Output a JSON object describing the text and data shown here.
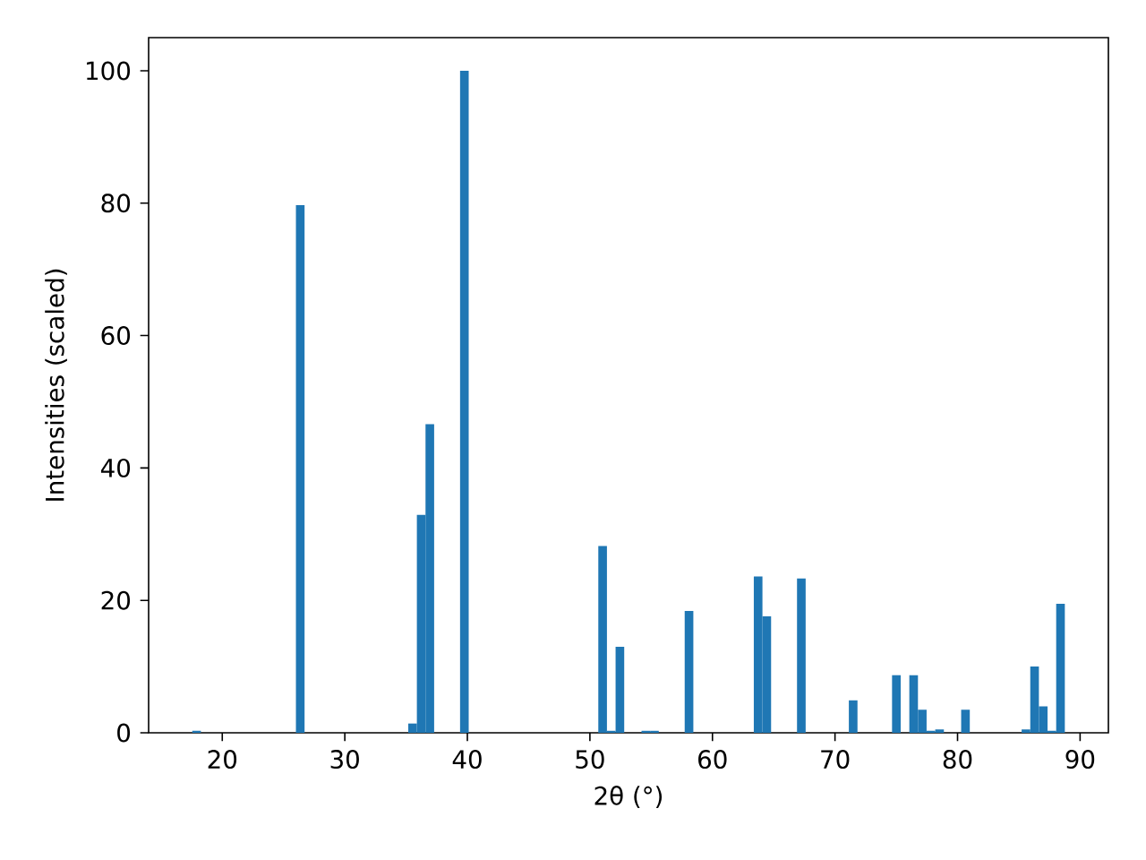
{
  "chart_data": {
    "type": "histogram",
    "xlabel": "2θ (°)",
    "ylabel": "Intensities (scaled)",
    "color": "#1f77b4",
    "bins": [
      17.55,
      18.255,
      18.96,
      19.665,
      20.37,
      21.075,
      21.78,
      22.485,
      23.19,
      23.895,
      24.6,
      25.305,
      26.01,
      26.715,
      27.42,
      28.125,
      28.83,
      29.535,
      30.24,
      30.945,
      31.65,
      32.355,
      33.06,
      33.765,
      34.47,
      35.175,
      35.88,
      36.585,
      37.29,
      37.995,
      38.7,
      39.405,
      40.11,
      40.815,
      41.52,
      42.225,
      42.93,
      43.635,
      44.34,
      45.045,
      45.75,
      46.455,
      47.16,
      47.865,
      48.57,
      49.275,
      49.98,
      50.685,
      51.39,
      52.095,
      52.8,
      53.505,
      54.21,
      54.915,
      55.62,
      56.325,
      57.03,
      57.735,
      58.44,
      59.145,
      59.85,
      60.555,
      61.26,
      61.965,
      62.67,
      63.375,
      64.08,
      64.785,
      65.49,
      66.195,
      66.9,
      67.605,
      68.31,
      69.015,
      69.72,
      70.425,
      71.13,
      71.835,
      72.54,
      73.245,
      73.95,
      74.655,
      75.36,
      76.065,
      76.77,
      77.475,
      78.18,
      78.885,
      79.59,
      80.295,
      81.0,
      81.705,
      82.41,
      83.115,
      83.82,
      84.525,
      85.23,
      85.935,
      86.64,
      87.345,
      88.05,
      88.755
    ],
    "values": [
      0.3,
      0,
      0,
      0,
      0,
      0,
      0,
      0,
      0,
      0,
      0,
      0,
      79.7,
      0,
      0,
      0,
      0,
      0,
      0,
      0,
      0,
      0,
      0,
      0,
      0,
      1.4,
      32.9,
      46.6,
      0,
      0,
      0,
      100,
      0,
      0,
      0,
      0,
      0,
      0,
      0,
      0,
      0,
      0,
      0,
      0,
      0,
      0,
      0,
      28.2,
      0.3,
      13.0,
      0,
      0,
      0.3,
      0.3,
      0,
      0,
      0,
      18.4,
      0,
      0,
      0,
      0,
      0,
      0,
      0,
      23.6,
      17.6,
      0,
      0,
      0,
      23.3,
      0,
      0,
      0,
      0,
      0,
      4.9,
      0,
      0,
      0,
      0,
      8.7,
      0,
      8.7,
      3.5,
      0.3,
      0.5,
      0,
      0,
      3.5,
      0,
      0,
      0,
      0,
      0,
      0,
      0.5,
      10.0,
      4.0,
      0.3,
      19.5
    ],
    "xlim": [
      13.99,
      92.31
    ],
    "ylim": [
      0,
      105
    ],
    "xticks": [
      20,
      30,
      40,
      50,
      60,
      70,
      80,
      90
    ],
    "yticks": [
      0,
      20,
      40,
      60,
      80,
      100
    ]
  }
}
